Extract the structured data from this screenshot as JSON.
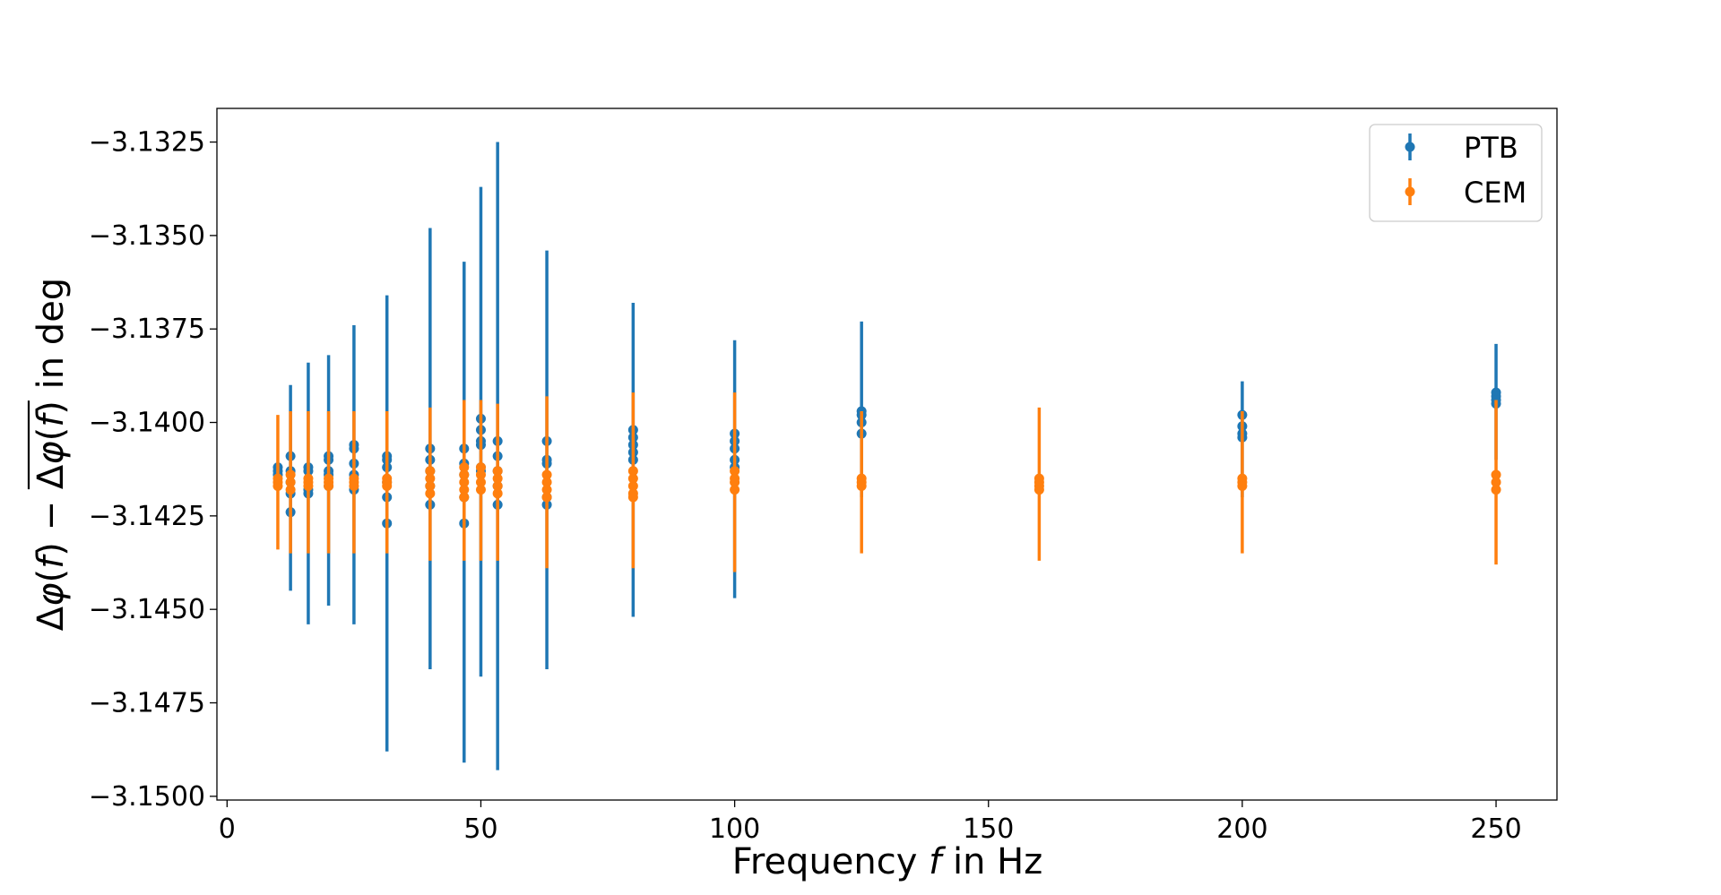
{
  "chart_data": {
    "type": "scatter",
    "title": "",
    "xlabel": "Frequency f in Hz",
    "xlabel_parts": [
      "Frequency ",
      "f",
      " in Hz"
    ],
    "ylabel": "Δφ(f) − Δφ(f) in deg",
    "ylabel_parts": [
      "Δ",
      "φ",
      "(",
      "f",
      ") − ",
      "Δ",
      "φ",
      "(",
      "f",
      ")",
      " in deg"
    ],
    "xlim": [
      -2,
      262
    ],
    "ylim": [
      -3.1501,
      -3.1316
    ],
    "xticks": [
      0,
      50,
      100,
      150,
      200,
      250
    ],
    "xtick_labels": [
      "0",
      "50",
      "100",
      "150",
      "200",
      "250"
    ],
    "yticks": [
      -3.1325,
      -3.135,
      -3.1375,
      -3.14,
      -3.1425,
      -3.145,
      -3.1475,
      -3.15
    ],
    "ytick_labels": [
      "−3.1325",
      "−3.1350",
      "−3.1375",
      "−3.1400",
      "−3.1425",
      "−3.1450",
      "−3.1475",
      "−3.1500"
    ],
    "grid": false,
    "legend_position": "top-right",
    "series": [
      {
        "name": "PTB",
        "color": "#1f77b4",
        "errorbars": [
          {
            "x": 12.5,
            "low": -3.1445,
            "high": -3.139
          },
          {
            "x": 16,
            "low": -3.1454,
            "high": -3.1384
          },
          {
            "x": 20,
            "low": -3.1449,
            "high": -3.1382
          },
          {
            "x": 25,
            "low": -3.1454,
            "high": -3.1374
          },
          {
            "x": 31.5,
            "low": -3.1488,
            "high": -3.1366
          },
          {
            "x": 40,
            "low": -3.1466,
            "high": -3.1348
          },
          {
            "x": 46.7,
            "low": -3.1491,
            "high": -3.1357
          },
          {
            "x": 50,
            "low": -3.1468,
            "high": -3.1337
          },
          {
            "x": 53.3,
            "low": -3.1493,
            "high": -3.1325
          },
          {
            "x": 63,
            "low": -3.1466,
            "high": -3.1354
          },
          {
            "x": 80,
            "low": -3.1452,
            "high": -3.1368
          },
          {
            "x": 100,
            "low": -3.1447,
            "high": -3.1378
          },
          {
            "x": 125,
            "low": -3.142,
            "high": -3.1373
          },
          {
            "x": 200,
            "low": -3.142,
            "high": -3.1389
          },
          {
            "x": 250,
            "low": -3.141,
            "high": -3.1379
          }
        ],
        "points": [
          {
            "x": 10,
            "ys": [
              -3.1412,
              -3.1413,
              -3.1414
            ]
          },
          {
            "x": 12.5,
            "ys": [
              -3.1409,
              -3.1413,
              -3.1416,
              -3.1419,
              -3.1424
            ]
          },
          {
            "x": 16,
            "ys": [
              -3.1412,
              -3.1413,
              -3.1418,
              -3.1419
            ]
          },
          {
            "x": 20,
            "ys": [
              -3.1409,
              -3.141,
              -3.1413,
              -3.1414,
              -3.1417
            ]
          },
          {
            "x": 25,
            "ys": [
              -3.1406,
              -3.1407,
              -3.1411,
              -3.1414,
              -3.1418
            ]
          },
          {
            "x": 31.5,
            "ys": [
              -3.1409,
              -3.141,
              -3.1412,
              -3.1416,
              -3.142,
              -3.1427
            ]
          },
          {
            "x": 40,
            "ys": [
              -3.1407,
              -3.141,
              -3.1413,
              -3.1417,
              -3.1422
            ]
          },
          {
            "x": 46.7,
            "ys": [
              -3.1407,
              -3.1411,
              -3.1414,
              -3.142,
              -3.1427
            ]
          },
          {
            "x": 50,
            "ys": [
              -3.1399,
              -3.1402,
              -3.1405,
              -3.1406,
              -3.1412,
              -3.1413
            ]
          },
          {
            "x": 53.3,
            "ys": [
              -3.1405,
              -3.1409,
              -3.1413,
              -3.1417,
              -3.1422
            ]
          },
          {
            "x": 63,
            "ys": [
              -3.1405,
              -3.141,
              -3.1411,
              -3.142,
              -3.1422
            ]
          },
          {
            "x": 80,
            "ys": [
              -3.1402,
              -3.1404,
              -3.1406,
              -3.1408,
              -3.141
            ]
          },
          {
            "x": 100,
            "ys": [
              -3.1403,
              -3.1405,
              -3.1407,
              -3.141,
              -3.1412
            ]
          },
          {
            "x": 125,
            "ys": [
              -3.1397,
              -3.1398,
              -3.14,
              -3.1403
            ]
          },
          {
            "x": 200,
            "ys": [
              -3.1398,
              -3.1401,
              -3.1403,
              -3.1404
            ]
          },
          {
            "x": 250,
            "ys": [
              -3.1392,
              -3.1393,
              -3.1394,
              -3.1395
            ]
          }
        ]
      },
      {
        "name": "CEM",
        "color": "#ff7f0e",
        "errorbars": [
          {
            "x": 10,
            "low": -3.1434,
            "high": -3.1398
          },
          {
            "x": 12.5,
            "low": -3.1435,
            "high": -3.1397
          },
          {
            "x": 16,
            "low": -3.1435,
            "high": -3.1397
          },
          {
            "x": 20,
            "low": -3.1435,
            "high": -3.1397
          },
          {
            "x": 25,
            "low": -3.1435,
            "high": -3.1397
          },
          {
            "x": 31.5,
            "low": -3.1435,
            "high": -3.1397
          },
          {
            "x": 40,
            "low": -3.1437,
            "high": -3.1396
          },
          {
            "x": 46.7,
            "low": -3.1437,
            "high": -3.1394
          },
          {
            "x": 50,
            "low": -3.1437,
            "high": -3.1394
          },
          {
            "x": 53.3,
            "low": -3.1437,
            "high": -3.1395
          },
          {
            "x": 63,
            "low": -3.1439,
            "high": -3.1393
          },
          {
            "x": 80,
            "low": -3.1439,
            "high": -3.1392
          },
          {
            "x": 100,
            "low": -3.144,
            "high": -3.1392
          },
          {
            "x": 125,
            "low": -3.1435,
            "high": -3.1397
          },
          {
            "x": 160,
            "low": -3.1437,
            "high": -3.1396
          },
          {
            "x": 200,
            "low": -3.1435,
            "high": -3.1397
          },
          {
            "x": 250,
            "low": -3.1438,
            "high": -3.1394
          }
        ],
        "points": [
          {
            "x": 10,
            "ys": [
              -3.1415,
              -3.1416,
              -3.1417
            ]
          },
          {
            "x": 12.5,
            "ys": [
              -3.1414,
              -3.1416,
              -3.1418
            ]
          },
          {
            "x": 16,
            "ys": [
              -3.1415,
              -3.1416,
              -3.1417
            ]
          },
          {
            "x": 20,
            "ys": [
              -3.1415,
              -3.1416,
              -3.1417
            ]
          },
          {
            "x": 25,
            "ys": [
              -3.1415,
              -3.1416,
              -3.1417
            ]
          },
          {
            "x": 31.5,
            "ys": [
              -3.1415,
              -3.1416,
              -3.1417
            ]
          },
          {
            "x": 40,
            "ys": [
              -3.1413,
              -3.1415,
              -3.1417,
              -3.1419
            ]
          },
          {
            "x": 46.7,
            "ys": [
              -3.1412,
              -3.1414,
              -3.1416,
              -3.1418,
              -3.142
            ]
          },
          {
            "x": 50,
            "ys": [
              -3.1412,
              -3.1414,
              -3.1416,
              -3.1418
            ]
          },
          {
            "x": 53.3,
            "ys": [
              -3.1413,
              -3.1415,
              -3.1417,
              -3.1419
            ]
          },
          {
            "x": 63,
            "ys": [
              -3.1414,
              -3.1416,
              -3.1418,
              -3.142
            ]
          },
          {
            "x": 80,
            "ys": [
              -3.1413,
              -3.1415,
              -3.1417,
              -3.1419,
              -3.142
            ]
          },
          {
            "x": 100,
            "ys": [
              -3.1413,
              -3.1415,
              -3.1416,
              -3.1418
            ]
          },
          {
            "x": 125,
            "ys": [
              -3.1415,
              -3.1416,
              -3.1417
            ]
          },
          {
            "x": 160,
            "ys": [
              -3.1415,
              -3.1416,
              -3.1417,
              -3.1418
            ]
          },
          {
            "x": 200,
            "ys": [
              -3.1415,
              -3.1416,
              -3.1417
            ]
          },
          {
            "x": 250,
            "ys": [
              -3.1414,
              -3.1416,
              -3.1418
            ]
          }
        ]
      }
    ]
  }
}
